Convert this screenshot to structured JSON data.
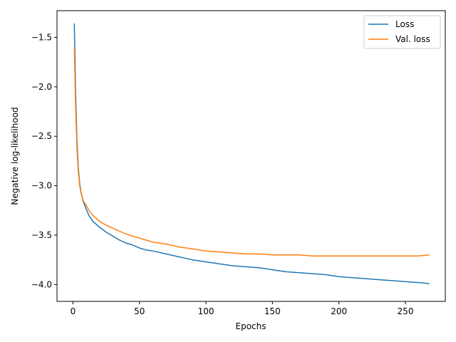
{
  "chart_data": {
    "type": "line",
    "title": "",
    "xlabel": "Epochs",
    "ylabel": "Negative log-likelihood",
    "xlim": [
      -12,
      280
    ],
    "ylim": [
      -4.17,
      -1.23
    ],
    "xticks": [
      0,
      50,
      100,
      150,
      200,
      250
    ],
    "xtick_labels": [
      "0",
      "50",
      "100",
      "150",
      "200",
      "250"
    ],
    "yticks": [
      -4.0,
      -3.5,
      -3.0,
      -2.5,
      -2.0,
      -1.5
    ],
    "ytick_labels": [
      "−4.0",
      "−3.5",
      "−3.0",
      "−2.5",
      "−2.0",
      "−1.5"
    ],
    "grid": false,
    "legend_position": "top-right",
    "series": [
      {
        "name": "Loss",
        "color": "#1f77b4",
        "x": [
          1,
          2,
          3,
          4,
          5,
          6,
          7,
          8,
          10,
          12,
          15,
          20,
          25,
          30,
          35,
          40,
          45,
          50,
          55,
          60,
          70,
          80,
          90,
          100,
          110,
          120,
          130,
          140,
          150,
          160,
          170,
          180,
          190,
          200,
          210,
          220,
          230,
          240,
          250,
          260,
          268
        ],
        "y": [
          -1.36,
          -2.05,
          -2.55,
          -2.82,
          -2.97,
          -3.06,
          -3.12,
          -3.17,
          -3.24,
          -3.3,
          -3.36,
          -3.42,
          -3.47,
          -3.51,
          -3.55,
          -3.58,
          -3.6,
          -3.63,
          -3.65,
          -3.66,
          -3.69,
          -3.72,
          -3.75,
          -3.77,
          -3.79,
          -3.81,
          -3.82,
          -3.83,
          -3.85,
          -3.87,
          -3.88,
          -3.89,
          -3.9,
          -3.92,
          -3.93,
          -3.94,
          -3.95,
          -3.96,
          -3.97,
          -3.98,
          -3.99
        ]
      },
      {
        "name": "Val. loss",
        "color": "#ff7f0e",
        "x": [
          1,
          2,
          3,
          4,
          5,
          6,
          7,
          8,
          10,
          12,
          15,
          20,
          25,
          30,
          35,
          40,
          45,
          50,
          55,
          60,
          70,
          80,
          90,
          100,
          110,
          120,
          130,
          140,
          150,
          160,
          170,
          180,
          190,
          200,
          210,
          220,
          230,
          240,
          250,
          260,
          268
        ],
        "y": [
          -1.6,
          -2.2,
          -2.62,
          -2.86,
          -2.99,
          -3.07,
          -3.12,
          -3.16,
          -3.2,
          -3.25,
          -3.3,
          -3.36,
          -3.4,
          -3.43,
          -3.46,
          -3.49,
          -3.51,
          -3.53,
          -3.55,
          -3.57,
          -3.59,
          -3.62,
          -3.64,
          -3.66,
          -3.67,
          -3.68,
          -3.69,
          -3.69,
          -3.7,
          -3.7,
          -3.7,
          -3.71,
          -3.71,
          -3.71,
          -3.71,
          -3.71,
          -3.71,
          -3.71,
          -3.71,
          -3.71,
          -3.7
        ]
      }
    ]
  }
}
